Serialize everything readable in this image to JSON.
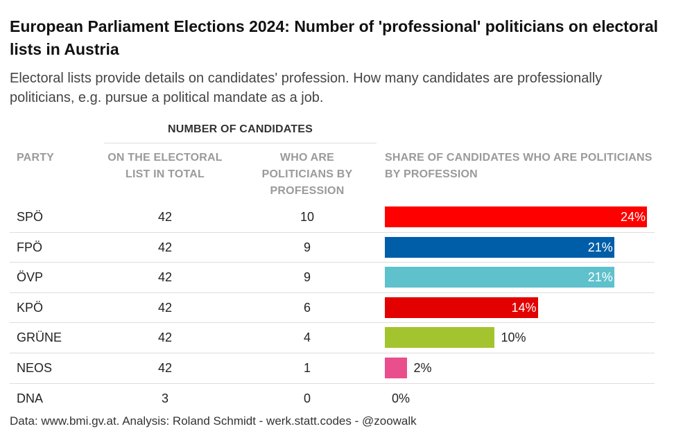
{
  "title": "European Parliament Elections 2024: Number of 'professional' politicians on electoral lists in Austria",
  "subtitle": "Electoral lists provide details on candidates' profession. How many candidates are professionally politicians, e.g. pursue a political mandate as a job.",
  "headers": {
    "group": "NUMBER OF CANDIDATES",
    "party": "PARTY",
    "total": "ON THE ELECTORAL LIST IN TOTAL",
    "politicians": "WHO ARE POLITICIANS BY PROFESSION",
    "share": "SHARE OF CANDIDATES WHO ARE POLITICIANS BY PROFESSION"
  },
  "source": "Data: www.bmi.gv.at. Analysis: Roland Schmidt - werk.statt.codes - @zoowalk",
  "chart_data": {
    "type": "table",
    "columns": [
      "PARTY",
      "ON THE ELECTORAL LIST IN TOTAL",
      "WHO ARE POLITICIANS BY PROFESSION",
      "SHARE OF CANDIDATES WHO ARE POLITICIANS BY PROFESSION"
    ],
    "xlim": [
      0,
      25
    ],
    "rows": [
      {
        "party": "SPÖ",
        "total": "42",
        "politicians": "10",
        "share": 24,
        "share_label": "24%",
        "color": "#ff0000"
      },
      {
        "party": "FPÖ",
        "total": "42",
        "politicians": "9",
        "share": 21,
        "share_label": "21%",
        "color": "#005ea8"
      },
      {
        "party": "ÖVP",
        "total": "42",
        "politicians": "9",
        "share": 21,
        "share_label": "21%",
        "color": "#5fc1cc"
      },
      {
        "party": "KPÖ",
        "total": "42",
        "politicians": "6",
        "share": 14,
        "share_label": "14%",
        "color": "#e30000"
      },
      {
        "party": "GRÜNE",
        "total": "42",
        "politicians": "4",
        "share": 10,
        "share_label": "10%",
        "color": "#a3c42f"
      },
      {
        "party": "NEOS",
        "total": "42",
        "politicians": "1",
        "share": 2,
        "share_label": "2%",
        "color": "#e84f8c"
      },
      {
        "party": "DNA",
        "total": "3",
        "politicians": "0",
        "share": 0,
        "share_label": "0%",
        "color": "#999999"
      }
    ]
  }
}
